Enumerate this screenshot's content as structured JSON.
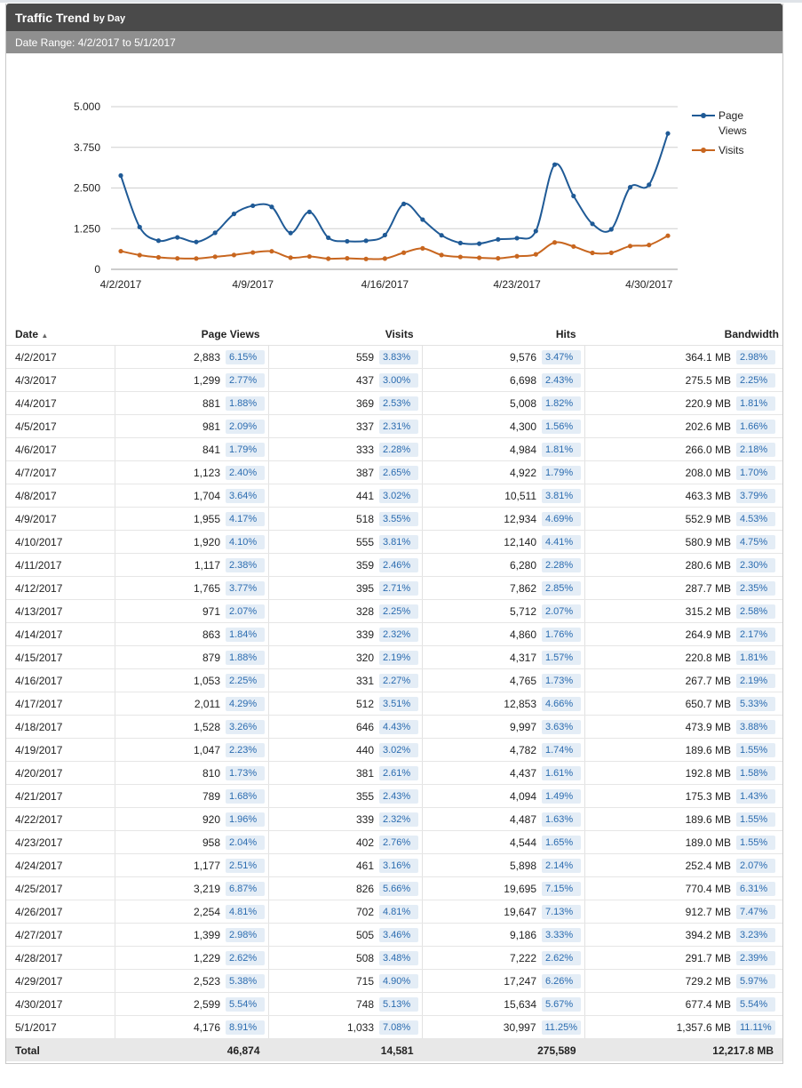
{
  "header": {
    "title": "Traffic Trend",
    "subtitle": "by Day",
    "date_range": "Date Range: 4/2/2017 to 5/1/2017"
  },
  "colors": {
    "page_views": "#1f5a96",
    "visits": "#c8661f"
  },
  "table": {
    "columns": {
      "date": "Date",
      "sort_indicator": "▲",
      "page_views": "Page Views",
      "visits": "Visits",
      "hits": "Hits",
      "bandwidth": "Bandwidth"
    },
    "rows": [
      {
        "date": "4/2/2017",
        "pv": "2,883",
        "pv_pct": "6.15%",
        "vi": "559",
        "vi_pct": "3.83%",
        "hits": "9,576",
        "hits_pct": "3.47%",
        "bw": "364.1 MB",
        "bw_pct": "2.98%"
      },
      {
        "date": "4/3/2017",
        "pv": "1,299",
        "pv_pct": "2.77%",
        "vi": "437",
        "vi_pct": "3.00%",
        "hits": "6,698",
        "hits_pct": "2.43%",
        "bw": "275.5 MB",
        "bw_pct": "2.25%"
      },
      {
        "date": "4/4/2017",
        "pv": "881",
        "pv_pct": "1.88%",
        "vi": "369",
        "vi_pct": "2.53%",
        "hits": "5,008",
        "hits_pct": "1.82%",
        "bw": "220.9 MB",
        "bw_pct": "1.81%"
      },
      {
        "date": "4/5/2017",
        "pv": "981",
        "pv_pct": "2.09%",
        "vi": "337",
        "vi_pct": "2.31%",
        "hits": "4,300",
        "hits_pct": "1.56%",
        "bw": "202.6 MB",
        "bw_pct": "1.66%"
      },
      {
        "date": "4/6/2017",
        "pv": "841",
        "pv_pct": "1.79%",
        "vi": "333",
        "vi_pct": "2.28%",
        "hits": "4,984",
        "hits_pct": "1.81%",
        "bw": "266.0 MB",
        "bw_pct": "2.18%"
      },
      {
        "date": "4/7/2017",
        "pv": "1,123",
        "pv_pct": "2.40%",
        "vi": "387",
        "vi_pct": "2.65%",
        "hits": "4,922",
        "hits_pct": "1.79%",
        "bw": "208.0 MB",
        "bw_pct": "1.70%"
      },
      {
        "date": "4/8/2017",
        "pv": "1,704",
        "pv_pct": "3.64%",
        "vi": "441",
        "vi_pct": "3.02%",
        "hits": "10,511",
        "hits_pct": "3.81%",
        "bw": "463.3 MB",
        "bw_pct": "3.79%"
      },
      {
        "date": "4/9/2017",
        "pv": "1,955",
        "pv_pct": "4.17%",
        "vi": "518",
        "vi_pct": "3.55%",
        "hits": "12,934",
        "hits_pct": "4.69%",
        "bw": "552.9 MB",
        "bw_pct": "4.53%"
      },
      {
        "date": "4/10/2017",
        "pv": "1,920",
        "pv_pct": "4.10%",
        "vi": "555",
        "vi_pct": "3.81%",
        "hits": "12,140",
        "hits_pct": "4.41%",
        "bw": "580.9 MB",
        "bw_pct": "4.75%"
      },
      {
        "date": "4/11/2017",
        "pv": "1,117",
        "pv_pct": "2.38%",
        "vi": "359",
        "vi_pct": "2.46%",
        "hits": "6,280",
        "hits_pct": "2.28%",
        "bw": "280.6 MB",
        "bw_pct": "2.30%"
      },
      {
        "date": "4/12/2017",
        "pv": "1,765",
        "pv_pct": "3.77%",
        "vi": "395",
        "vi_pct": "2.71%",
        "hits": "7,862",
        "hits_pct": "2.85%",
        "bw": "287.7 MB",
        "bw_pct": "2.35%"
      },
      {
        "date": "4/13/2017",
        "pv": "971",
        "pv_pct": "2.07%",
        "vi": "328",
        "vi_pct": "2.25%",
        "hits": "5,712",
        "hits_pct": "2.07%",
        "bw": "315.2 MB",
        "bw_pct": "2.58%"
      },
      {
        "date": "4/14/2017",
        "pv": "863",
        "pv_pct": "1.84%",
        "vi": "339",
        "vi_pct": "2.32%",
        "hits": "4,860",
        "hits_pct": "1.76%",
        "bw": "264.9 MB",
        "bw_pct": "2.17%"
      },
      {
        "date": "4/15/2017",
        "pv": "879",
        "pv_pct": "1.88%",
        "vi": "320",
        "vi_pct": "2.19%",
        "hits": "4,317",
        "hits_pct": "1.57%",
        "bw": "220.8 MB",
        "bw_pct": "1.81%"
      },
      {
        "date": "4/16/2017",
        "pv": "1,053",
        "pv_pct": "2.25%",
        "vi": "331",
        "vi_pct": "2.27%",
        "hits": "4,765",
        "hits_pct": "1.73%",
        "bw": "267.7 MB",
        "bw_pct": "2.19%"
      },
      {
        "date": "4/17/2017",
        "pv": "2,011",
        "pv_pct": "4.29%",
        "vi": "512",
        "vi_pct": "3.51%",
        "hits": "12,853",
        "hits_pct": "4.66%",
        "bw": "650.7 MB",
        "bw_pct": "5.33%"
      },
      {
        "date": "4/18/2017",
        "pv": "1,528",
        "pv_pct": "3.26%",
        "vi": "646",
        "vi_pct": "4.43%",
        "hits": "9,997",
        "hits_pct": "3.63%",
        "bw": "473.9 MB",
        "bw_pct": "3.88%"
      },
      {
        "date": "4/19/2017",
        "pv": "1,047",
        "pv_pct": "2.23%",
        "vi": "440",
        "vi_pct": "3.02%",
        "hits": "4,782",
        "hits_pct": "1.74%",
        "bw": "189.6 MB",
        "bw_pct": "1.55%"
      },
      {
        "date": "4/20/2017",
        "pv": "810",
        "pv_pct": "1.73%",
        "vi": "381",
        "vi_pct": "2.61%",
        "hits": "4,437",
        "hits_pct": "1.61%",
        "bw": "192.8 MB",
        "bw_pct": "1.58%"
      },
      {
        "date": "4/21/2017",
        "pv": "789",
        "pv_pct": "1.68%",
        "vi": "355",
        "vi_pct": "2.43%",
        "hits": "4,094",
        "hits_pct": "1.49%",
        "bw": "175.3 MB",
        "bw_pct": "1.43%"
      },
      {
        "date": "4/22/2017",
        "pv": "920",
        "pv_pct": "1.96%",
        "vi": "339",
        "vi_pct": "2.32%",
        "hits": "4,487",
        "hits_pct": "1.63%",
        "bw": "189.6 MB",
        "bw_pct": "1.55%"
      },
      {
        "date": "4/23/2017",
        "pv": "958",
        "pv_pct": "2.04%",
        "vi": "402",
        "vi_pct": "2.76%",
        "hits": "4,544",
        "hits_pct": "1.65%",
        "bw": "189.0 MB",
        "bw_pct": "1.55%"
      },
      {
        "date": "4/24/2017",
        "pv": "1,177",
        "pv_pct": "2.51%",
        "vi": "461",
        "vi_pct": "3.16%",
        "hits": "5,898",
        "hits_pct": "2.14%",
        "bw": "252.4 MB",
        "bw_pct": "2.07%"
      },
      {
        "date": "4/25/2017",
        "pv": "3,219",
        "pv_pct": "6.87%",
        "vi": "826",
        "vi_pct": "5.66%",
        "hits": "19,695",
        "hits_pct": "7.15%",
        "bw": "770.4 MB",
        "bw_pct": "6.31%"
      },
      {
        "date": "4/26/2017",
        "pv": "2,254",
        "pv_pct": "4.81%",
        "vi": "702",
        "vi_pct": "4.81%",
        "hits": "19,647",
        "hits_pct": "7.13%",
        "bw": "912.7 MB",
        "bw_pct": "7.47%"
      },
      {
        "date": "4/27/2017",
        "pv": "1,399",
        "pv_pct": "2.98%",
        "vi": "505",
        "vi_pct": "3.46%",
        "hits": "9,186",
        "hits_pct": "3.33%",
        "bw": "394.2 MB",
        "bw_pct": "3.23%"
      },
      {
        "date": "4/28/2017",
        "pv": "1,229",
        "pv_pct": "2.62%",
        "vi": "508",
        "vi_pct": "3.48%",
        "hits": "7,222",
        "hits_pct": "2.62%",
        "bw": "291.7 MB",
        "bw_pct": "2.39%"
      },
      {
        "date": "4/29/2017",
        "pv": "2,523",
        "pv_pct": "5.38%",
        "vi": "715",
        "vi_pct": "4.90%",
        "hits": "17,247",
        "hits_pct": "6.26%",
        "bw": "729.2 MB",
        "bw_pct": "5.97%"
      },
      {
        "date": "4/30/2017",
        "pv": "2,599",
        "pv_pct": "5.54%",
        "vi": "748",
        "vi_pct": "5.13%",
        "hits": "15,634",
        "hits_pct": "5.67%",
        "bw": "677.4 MB",
        "bw_pct": "5.54%"
      },
      {
        "date": "5/1/2017",
        "pv": "4,176",
        "pv_pct": "8.91%",
        "vi": "1,033",
        "vi_pct": "7.08%",
        "hits": "30,997",
        "hits_pct": "11.25%",
        "bw": "1,357.6 MB",
        "bw_pct": "11.11%"
      }
    ],
    "total": {
      "label": "Total",
      "pv": "46,874",
      "vi": "14,581",
      "hits": "275,589",
      "bw": "12,217.8 MB"
    }
  },
  "chart_data": {
    "type": "line",
    "x": [
      "4/2/2017",
      "4/3/2017",
      "4/4/2017",
      "4/5/2017",
      "4/6/2017",
      "4/7/2017",
      "4/8/2017",
      "4/9/2017",
      "4/10/2017",
      "4/11/2017",
      "4/12/2017",
      "4/13/2017",
      "4/14/2017",
      "4/15/2017",
      "4/16/2017",
      "4/17/2017",
      "4/18/2017",
      "4/19/2017",
      "4/20/2017",
      "4/21/2017",
      "4/22/2017",
      "4/23/2017",
      "4/24/2017",
      "4/25/2017",
      "4/26/2017",
      "4/27/2017",
      "4/28/2017",
      "4/29/2017",
      "4/30/2017",
      "5/1/2017"
    ],
    "x_tick_labels": [
      "4/2/2017",
      "4/9/2017",
      "4/16/2017",
      "4/23/2017",
      "4/30/2017"
    ],
    "y_tick_labels": [
      "5.000",
      "3.750",
      "2.500",
      "1.250",
      "0"
    ],
    "y_ticks": [
      5000,
      3750,
      2500,
      1250,
      0
    ],
    "ylim": [
      0,
      5000
    ],
    "grid": true,
    "legend": "top-right",
    "series": [
      {
        "name": "Page Views",
        "values": [
          2883,
          1299,
          881,
          981,
          841,
          1123,
          1704,
          1955,
          1920,
          1117,
          1765,
          971,
          863,
          879,
          1053,
          2011,
          1528,
          1047,
          810,
          789,
          920,
          958,
          1177,
          3219,
          2254,
          1399,
          1229,
          2523,
          2599,
          4176
        ]
      },
      {
        "name": "Visits",
        "values": [
          559,
          437,
          369,
          337,
          333,
          387,
          441,
          518,
          555,
          359,
          395,
          328,
          339,
          320,
          331,
          512,
          646,
          440,
          381,
          355,
          339,
          402,
          461,
          826,
          702,
          505,
          508,
          715,
          748,
          1033
        ]
      }
    ]
  }
}
